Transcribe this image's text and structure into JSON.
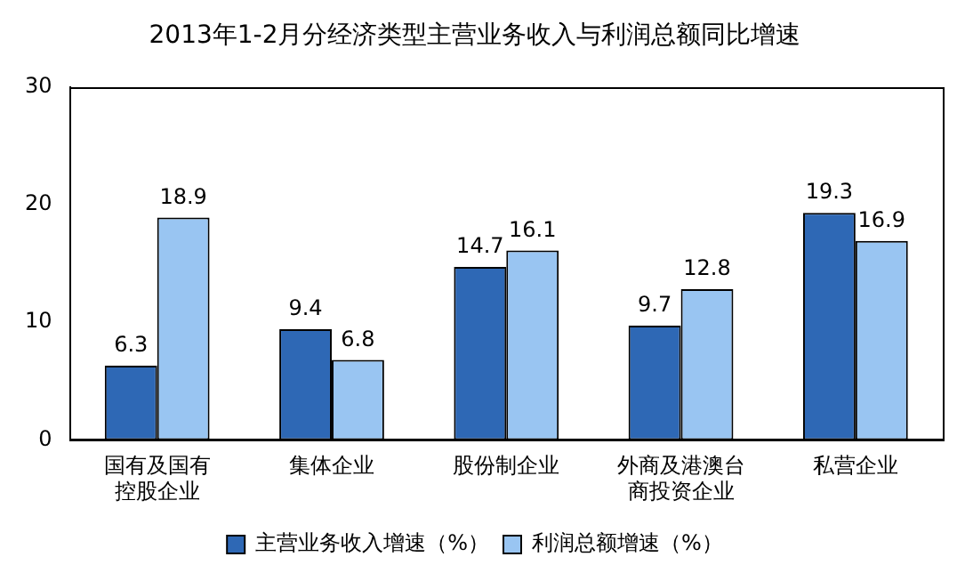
{
  "chart_data": {
    "type": "bar",
    "title": "2013年1-2月分经济类型主营业务收入与利润总额同比增速",
    "categories": [
      "国有及国有控股企业",
      "集体企业",
      "股份制企业",
      "外商及港澳台商投资企业",
      "私营企业"
    ],
    "series": [
      {
        "name": "主营业务收入增速（%）",
        "color": "#2e68b5",
        "values": [
          6.3,
          9.4,
          14.7,
          9.7,
          19.3
        ]
      },
      {
        "name": "利润总额增速（%）",
        "color": "#99c5f2",
        "values": [
          18.9,
          6.8,
          16.1,
          12.8,
          16.9
        ]
      }
    ],
    "ylim": [
      0,
      30
    ],
    "yticks": [
      0,
      10,
      20,
      30
    ],
    "grid": false,
    "legend": "bottom",
    "data_labels": true
  }
}
